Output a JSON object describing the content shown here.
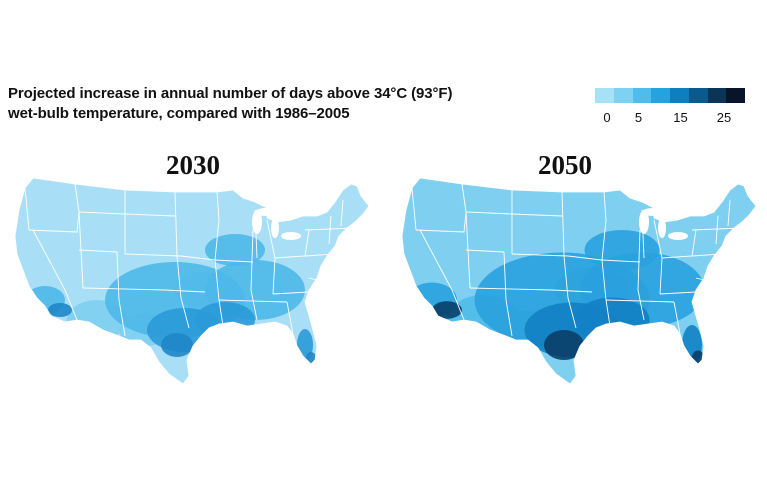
{
  "title": {
    "line1": "Projected increase in annual number of days above 34°C (93°F)",
    "line2": "wet-bulb temperature, compared with 1986–2005"
  },
  "legend": {
    "colors": [
      "#a7e1f6",
      "#7dd2f2",
      "#4fbdeb",
      "#24a3df",
      "#0b7fc0",
      "#0a5a8e",
      "#0b3557",
      "#07142a"
    ],
    "ticks": [
      "0",
      "5",
      "15",
      "25"
    ]
  },
  "maps": [
    {
      "year": "2030",
      "palette": {
        "base": "#a9dff6",
        "mid": "#7ecff1",
        "high": "#4db8e9",
        "hot": "#2a9ad8",
        "extreme": "#1f86c6"
      }
    },
    {
      "year": "2050",
      "palette": {
        "base": "#7fcff1",
        "mid": "#4fbbe9",
        "high": "#2aa1de",
        "hot": "#1281c4",
        "extreme": "#0a3f69"
      }
    }
  ]
}
